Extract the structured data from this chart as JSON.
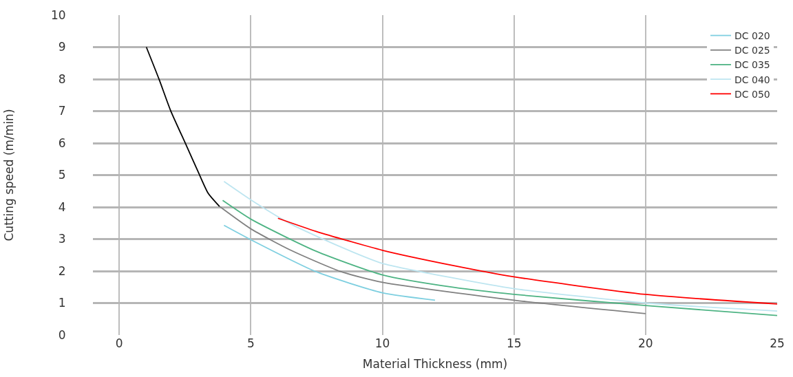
{
  "chart_data": {
    "type": "line",
    "xlabel": "Material Thickness (mm)",
    "ylabel": "Cutting speed (m/min)",
    "xlim": [
      -1,
      25
    ],
    "xticks": [
      0,
      5,
      10,
      15,
      20,
      25
    ],
    "ylim": [
      0,
      10
    ],
    "yticks": [
      0,
      1,
      2,
      3,
      4,
      5,
      6,
      7,
      8,
      9,
      10
    ],
    "grid": true,
    "legend": "top right",
    "marker": "none",
    "series": [
      {
        "color": "#000000",
        "x": [
          1.03,
          1.52,
          1.95,
          2.52,
          3.0,
          3.38,
          3.81
        ],
        "values": [
          9.0,
          7.98,
          7.02,
          5.98,
          5.1,
          4.43,
          4.02
        ]
      },
      {
        "name": "DC 020",
        "color": "#7ecfe0",
        "x": [
          3.98,
          5.0,
          7.48,
          10.0,
          12.0
        ],
        "values": [
          3.43,
          2.98,
          1.98,
          1.32,
          1.09
        ]
      },
      {
        "name": "DC 025",
        "color": "#808080",
        "x": [
          3.81,
          5.0,
          6.52,
          8.43,
          10.0,
          15.0,
          20.0
        ],
        "values": [
          4.02,
          3.32,
          2.65,
          1.98,
          1.65,
          1.09,
          0.67
        ]
      },
      {
        "name": "DC 035",
        "color": "#4db383",
        "x": [
          3.93,
          5.03,
          7.48,
          10.0,
          12.71,
          15.0,
          20.0,
          25.0
        ],
        "values": [
          4.21,
          3.61,
          2.62,
          1.88,
          1.49,
          1.27,
          0.92,
          0.61
        ]
      },
      {
        "name": "DC 040",
        "color": "#bde5f0",
        "x": [
          3.98,
          5.03,
          6.52,
          8.43,
          10.0,
          12.71,
          15.0,
          20.0,
          25.0
        ],
        "values": [
          4.8,
          4.21,
          3.47,
          2.75,
          2.24,
          1.78,
          1.45,
          1.0,
          0.75
        ]
      },
      {
        "name": "DC 050",
        "color": "#ff0000",
        "x": [
          6.03,
          7.48,
          10.0,
          12.71,
          15.0,
          20.0,
          25.0
        ],
        "values": [
          3.65,
          3.24,
          2.65,
          2.17,
          1.82,
          1.27,
          0.97
        ]
      }
    ]
  }
}
